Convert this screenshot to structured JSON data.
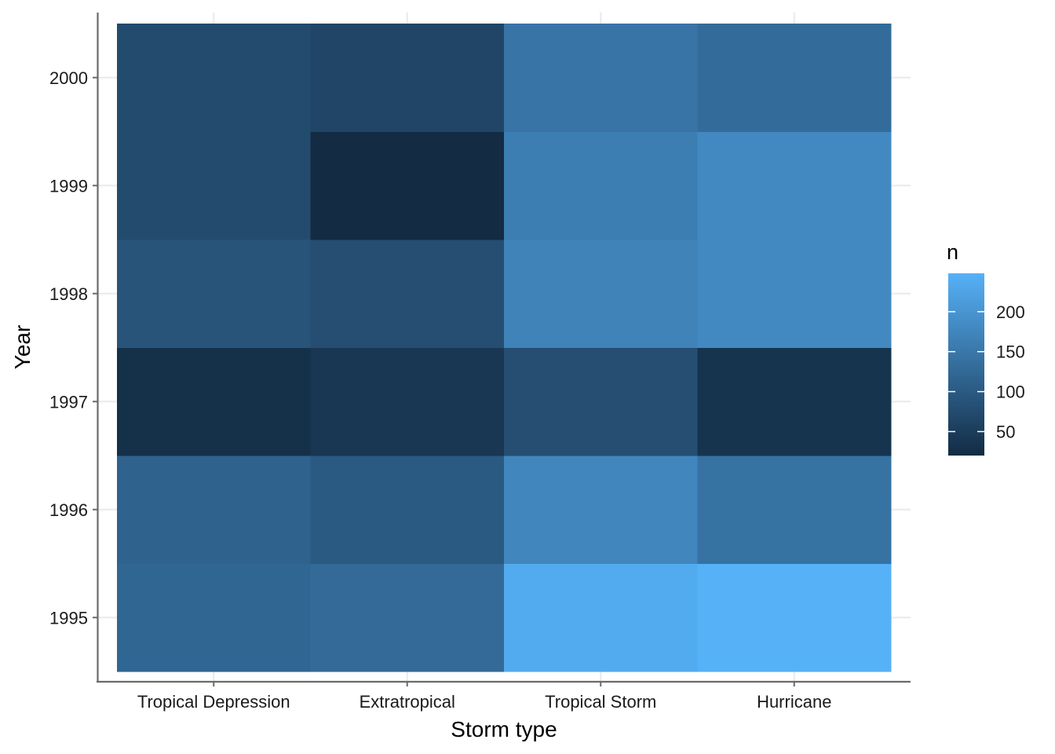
{
  "chart_data": {
    "type": "heatmap",
    "xlabel": "Storm type",
    "ylabel": "Year",
    "x_categories": [
      "Tropical Depression",
      "Extratropical",
      "Tropical Storm",
      "Hurricane"
    ],
    "y_categories": [
      "1995",
      "1996",
      "1997",
      "1998",
      "1999",
      "2000"
    ],
    "values": [
      [
        120,
        128,
        238,
        248
      ],
      [
        115,
        98,
        175,
        140
      ],
      [
        28,
        40,
        80,
        35
      ],
      [
        90,
        80,
        170,
        180
      ],
      [
        75,
        20,
        160,
        180
      ],
      [
        75,
        65,
        145,
        130
      ]
    ],
    "legend": {
      "title": "n",
      "ticks": [
        50,
        100,
        150,
        200
      ],
      "range": [
        20,
        248
      ],
      "placement": "right"
    },
    "colors": {
      "low": "#132B43",
      "high": "#56B1F7",
      "grid": "#ebebeb",
      "axis_line": "#6b6b6b"
    },
    "grid": true
  }
}
